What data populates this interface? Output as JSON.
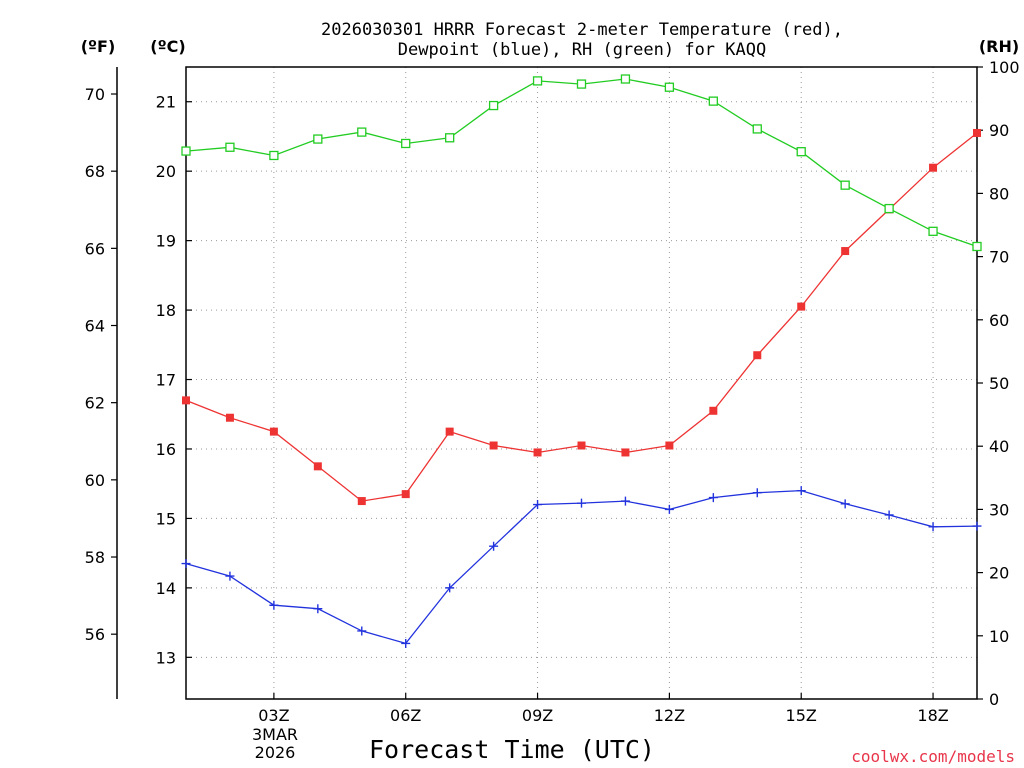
{
  "chart_data": {
    "type": "line",
    "title_line1": "2026030301 HRRR Forecast 2-meter Temperature (red),",
    "title_line2": "Dewpoint (blue), RH (green) for KAQQ",
    "units": {
      "fahrenheit": "(ºF)",
      "celsius": "(ºC)",
      "rh": "(RH)"
    },
    "xlabel": "Forecast Time (UTC)",
    "x": [
      1,
      2,
      3,
      4,
      5,
      6,
      7,
      8,
      9,
      10,
      11,
      12,
      13,
      14,
      15,
      16,
      17,
      18,
      19
    ],
    "xlim": [
      1,
      19
    ],
    "x_ticks": [
      {
        "x": 3,
        "label": "03Z"
      },
      {
        "x": 6,
        "label": "06Z"
      },
      {
        "x": 9,
        "label": "09Z"
      },
      {
        "x": 12,
        "label": "12Z"
      },
      {
        "x": 15,
        "label": "15Z"
      },
      {
        "x": 18,
        "label": "18Z"
      }
    ],
    "date_label": [
      "3MAR",
      "2026"
    ],
    "celsius_axis": {
      "ylim": [
        12.4,
        21.5
      ],
      "ticks": [
        13,
        14,
        15,
        16,
        17,
        18,
        19,
        20,
        21
      ]
    },
    "fahrenheit_axis": {
      "ticks": [
        56,
        58,
        60,
        62,
        64,
        66,
        68,
        70
      ]
    },
    "rh_axis": {
      "ylim": [
        0,
        100
      ],
      "ticks": [
        0,
        10,
        20,
        30,
        40,
        50,
        60,
        70,
        80,
        90,
        100
      ]
    },
    "series": [
      {
        "name": "Temperature",
        "axis": "celsius",
        "color": "#ee3333",
        "marker": "filled-square",
        "values": [
          16.7,
          16.45,
          16.25,
          15.75,
          15.25,
          15.35,
          16.25,
          16.05,
          15.95,
          16.05,
          15.95,
          16.05,
          16.55,
          17.35,
          18.05,
          18.85,
          19.45,
          20.05,
          20.55
        ]
      },
      {
        "name": "Dewpoint",
        "axis": "celsius",
        "color": "#2233dd",
        "marker": "plus",
        "values": [
          14.35,
          14.17,
          13.75,
          13.7,
          13.38,
          13.2,
          14.0,
          14.6,
          15.2,
          15.22,
          15.25,
          15.13,
          15.3,
          15.37,
          15.4,
          15.21,
          15.05,
          14.88,
          14.89
        ]
      },
      {
        "name": "RH",
        "axis": "rh",
        "color": "#22cc22",
        "marker": "open-square",
        "values": [
          86.7,
          87.3,
          86.0,
          88.6,
          89.7,
          87.9,
          88.8,
          93.9,
          97.8,
          97.3,
          98.1,
          96.8,
          94.6,
          90.2,
          86.6,
          81.3,
          77.6,
          74.0,
          71.6
        ]
      }
    ]
  },
  "footer": {
    "credit": "coolwx.com/models"
  }
}
